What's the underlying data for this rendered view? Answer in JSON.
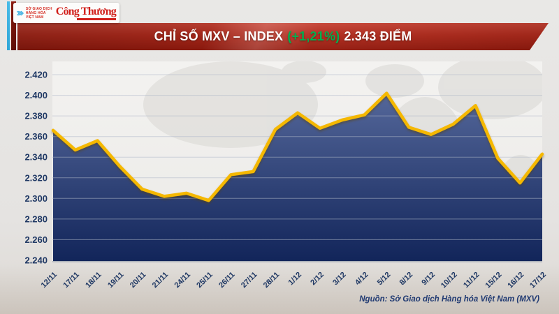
{
  "header": {
    "logo": {
      "exchange_name_lines": [
        "SỞ GIAO DỊCH",
        "HÀNG HÓA",
        "VIỆT NAM"
      ],
      "exchange_text_color": "#d42a1f",
      "chevron_icon_color": "#2aa9e0",
      "newspaper": "Công Thương",
      "newspaper_color": "#d1211c"
    },
    "banner": {
      "title_main": "CHỈ SỐ MXV – INDEX",
      "title_change": "(+1,21%)",
      "title_value": "2.343 ĐIỂM",
      "change_color": "#00b050",
      "background_color": "#b02a1c"
    }
  },
  "footer": {
    "source": "Nguồn: Sở Giao dịch Hàng hóa Việt Nam (MXV)"
  },
  "chart_data": {
    "type": "area",
    "title": "CHỈ SỐ MXV – INDEX (+1,21%) 2.343 ĐIỂM",
    "x": [
      "12/11",
      "17/11",
      "18/11",
      "19/11",
      "20/11",
      "21/11",
      "24/11",
      "25/11",
      "26/11",
      "27/11",
      "28/11",
      "1/12",
      "2/12",
      "3/12",
      "4/12",
      "5/12",
      "8/12",
      "9/12",
      "10/12",
      "11/12",
      "15/12",
      "16/12",
      "17/12"
    ],
    "values": [
      2.366,
      2.347,
      2.356,
      2.331,
      2.309,
      2.302,
      2.305,
      2.298,
      2.323,
      2.326,
      2.367,
      2.383,
      2.368,
      2.376,
      2.381,
      2.402,
      2.369,
      2.362,
      2.372,
      2.39,
      2.339,
      2.315,
      2.343
    ],
    "unit": "điểm",
    "ylim": [
      2.24,
      2.42
    ],
    "ytick_labels": [
      "2.420",
      "2.400",
      "2.380",
      "2.360",
      "2.340",
      "2.320",
      "2.300",
      "2.280",
      "2.260",
      "2.240"
    ],
    "grid": true,
    "legend": "none",
    "line_color": "#f5b800",
    "area_gradient_top": "#54679a",
    "area_gradient_bottom": "#12255a",
    "label_color": "#1f3864"
  }
}
